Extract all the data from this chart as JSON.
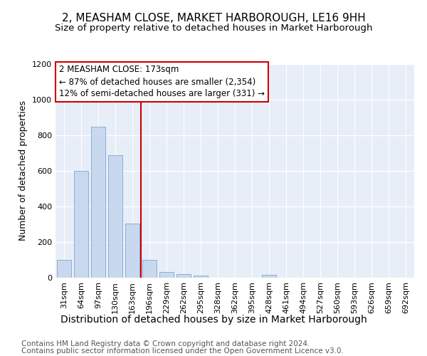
{
  "title": "2, MEASHAM CLOSE, MARKET HARBOROUGH, LE16 9HH",
  "subtitle": "Size of property relative to detached houses in Market Harborough",
  "xlabel": "Distribution of detached houses by size in Market Harborough",
  "ylabel": "Number of detached properties",
  "footer_line1": "Contains HM Land Registry data © Crown copyright and database right 2024.",
  "footer_line2": "Contains public sector information licensed under the Open Government Licence v3.0.",
  "bin_labels": [
    "31sqm",
    "64sqm",
    "97sqm",
    "130sqm",
    "163sqm",
    "196sqm",
    "229sqm",
    "262sqm",
    "295sqm",
    "328sqm",
    "362sqm",
    "395sqm",
    "428sqm",
    "461sqm",
    "494sqm",
    "527sqm",
    "560sqm",
    "593sqm",
    "626sqm",
    "659sqm",
    "692sqm"
  ],
  "bar_values": [
    100,
    600,
    850,
    690,
    305,
    100,
    32,
    22,
    12,
    0,
    0,
    0,
    15,
    0,
    0,
    0,
    0,
    0,
    0,
    0,
    0
  ],
  "bar_color": "#c8d8ee",
  "bar_edge_color": "#8aaed6",
  "red_line_x": 4.5,
  "annotation_title": "2 MEASHAM CLOSE: 173sqm",
  "annotation_line1": "← 87% of detached houses are smaller (2,354)",
  "annotation_line2": "12% of semi-detached houses are larger (331) →",
  "red_color": "#cc0000",
  "ylim": [
    0,
    1200
  ],
  "yticks": [
    0,
    200,
    400,
    600,
    800,
    1000,
    1200
  ],
  "plot_bg_color": "#e8eef8",
  "title_fontsize": 11,
  "subtitle_fontsize": 9.5,
  "ylabel_fontsize": 9,
  "xlabel_fontsize": 10,
  "tick_fontsize": 8,
  "annotation_fontsize": 8.5,
  "footer_fontsize": 7.5
}
